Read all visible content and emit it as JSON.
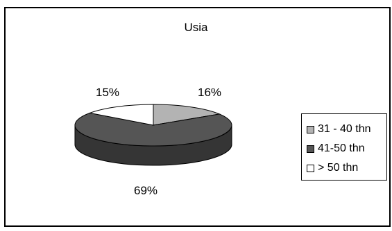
{
  "chart_data": {
    "type": "pie",
    "title": "Usia",
    "categories": [
      "31 - 40 thn",
      "41-50 thn",
      "> 50 thn"
    ],
    "values": [
      16,
      69,
      15
    ],
    "labels": [
      "16%",
      "69%",
      "15%"
    ],
    "colors": [
      "#b3b3b3",
      "#555555",
      "#ffffff"
    ],
    "legend_position": "right",
    "three_d": true
  }
}
